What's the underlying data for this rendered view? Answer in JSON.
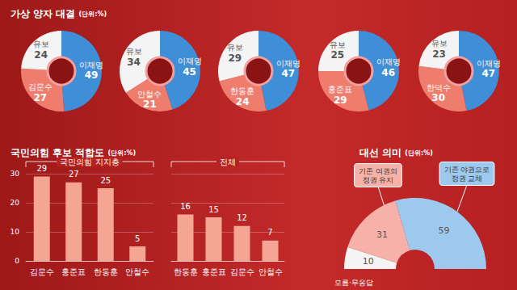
{
  "chart_data": [
    {
      "type": "donut",
      "title": "가상 양자 대결",
      "subtitle": "(단위:%)",
      "categories": [
        "이재명",
        "김문수",
        "유보"
      ],
      "values": [
        49,
        27,
        24
      ],
      "colors": [
        "#3f8fd8",
        "#ef7d6e",
        "#f4f4f4"
      ],
      "data_labels": true
    },
    {
      "type": "donut",
      "categories": [
        "이재명",
        "안철수",
        "유보"
      ],
      "values": [
        45,
        21,
        34
      ],
      "colors": [
        "#3f8fd8",
        "#ef7d6e",
        "#f4f4f4"
      ],
      "data_labels": true
    },
    {
      "type": "donut",
      "categories": [
        "이재명",
        "한동훈",
        "유보"
      ],
      "values": [
        47,
        24,
        29
      ],
      "colors": [
        "#3f8fd8",
        "#ef7d6e",
        "#f4f4f4"
      ],
      "data_labels": true
    },
    {
      "type": "donut",
      "categories": [
        "이재명",
        "홍준표",
        "유보"
      ],
      "values": [
        46,
        29,
        25
      ],
      "colors": [
        "#3f8fd8",
        "#ef7d6e",
        "#f4f4f4"
      ],
      "data_labels": true
    },
    {
      "type": "donut",
      "categories": [
        "이재명",
        "한덕수",
        "유보"
      ],
      "values": [
        47,
        30,
        23
      ],
      "colors": [
        "#3f8fd8",
        "#ef7d6e",
        "#f4f4f4"
      ],
      "data_labels": true
    },
    {
      "type": "bar",
      "title": "국민의힘 후보 적합도",
      "subtitle": "(단위:%)",
      "annotation": "국민의힘 지지층",
      "categories": [
        "김문수",
        "홍준표",
        "한동훈",
        "안철수"
      ],
      "values": [
        29,
        27,
        25,
        5
      ],
      "color": "#f5a594",
      "ylim": [
        0,
        30
      ],
      "yticks": [
        0,
        10,
        20,
        30
      ],
      "grid": true,
      "data_labels": true
    },
    {
      "type": "bar",
      "annotation": "전체",
      "categories": [
        "한동훈",
        "홍준표",
        "김문수",
        "안철수"
      ],
      "values": [
        16,
        15,
        12,
        7
      ],
      "color": "#f5a594",
      "ylim": [
        0,
        30
      ],
      "yticks": [
        0,
        10,
        20,
        30
      ],
      "grid": true,
      "data_labels": true,
      "tick_labels": "x"
    },
    {
      "type": "semicircle",
      "title": "대선 의미",
      "subtitle": "(단위:%)",
      "categories": [
        "모름·무응답",
        "기존 여권의\n정권 유지",
        "기존 야권으로\n정권 교체"
      ],
      "values": [
        10,
        31,
        59
      ],
      "colors": [
        "#f4f4f4",
        "#f6b1a9",
        "#9dc9ee"
      ],
      "data_labels": true
    }
  ]
}
